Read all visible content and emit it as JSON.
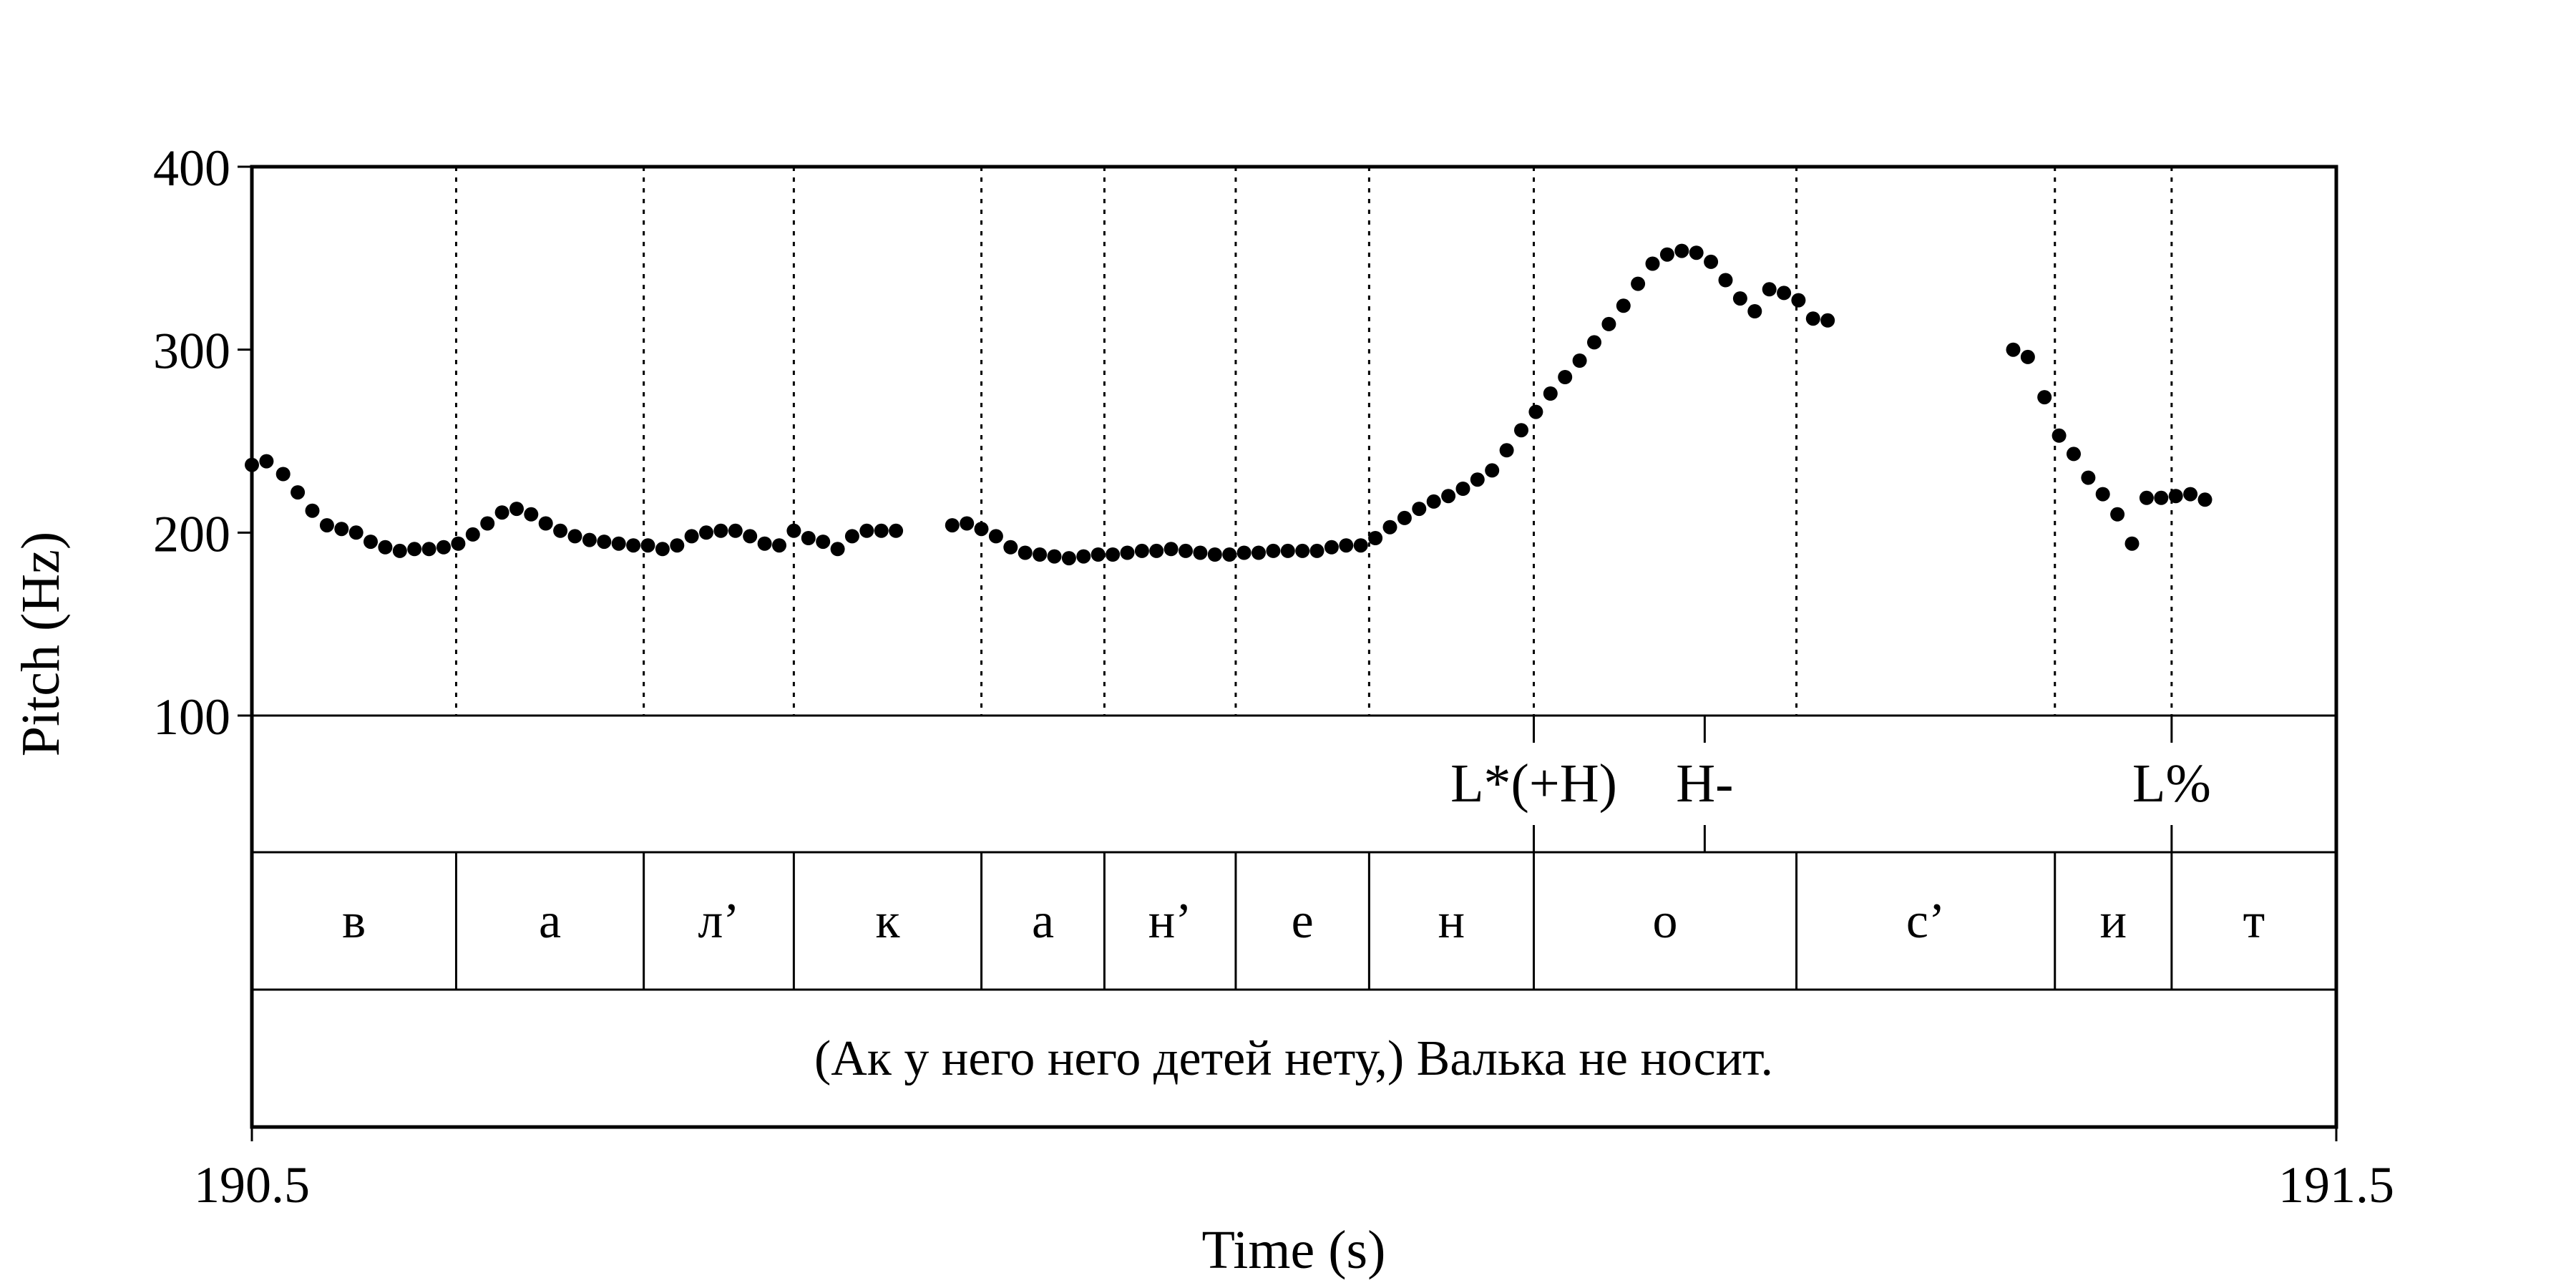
{
  "chart_data": {
    "type": "scatter",
    "xlabel": "Time (s)",
    "ylabel": "Pitch (Hz)",
    "xlim": [
      190.5,
      191.5
    ],
    "ylim": [
      100,
      400
    ],
    "xticks": [
      "190.5",
      "191.5"
    ],
    "yticks": [
      "100",
      "200",
      "300",
      "400"
    ],
    "grid": false,
    "legend": "none",
    "point_color": "#000000",
    "series": [
      {
        "points": [
          [
            190.5,
            237
          ],
          [
            190.507,
            239
          ],
          [
            190.515,
            232
          ],
          [
            190.522,
            222
          ],
          [
            190.529,
            212
          ],
          [
            190.536,
            204
          ],
          [
            190.543,
            202
          ],
          [
            190.55,
            200
          ],
          [
            190.557,
            195
          ],
          [
            190.564,
            192
          ],
          [
            190.571,
            190
          ],
          [
            190.578,
            191
          ],
          [
            190.585,
            191
          ],
          [
            190.592,
            192
          ],
          [
            190.599,
            194
          ],
          [
            190.606,
            199
          ],
          [
            190.613,
            205
          ],
          [
            190.62,
            211
          ],
          [
            190.627,
            213
          ],
          [
            190.634,
            210
          ],
          [
            190.641,
            205
          ],
          [
            190.648,
            201
          ],
          [
            190.655,
            198
          ],
          [
            190.662,
            196
          ],
          [
            190.669,
            195
          ],
          [
            190.676,
            194
          ],
          [
            190.683,
            193
          ],
          [
            190.69,
            193
          ],
          [
            190.697,
            191
          ],
          [
            190.704,
            193
          ],
          [
            190.711,
            198
          ],
          [
            190.718,
            200
          ],
          [
            190.725,
            201
          ],
          [
            190.732,
            201
          ],
          [
            190.739,
            198
          ],
          [
            190.746,
            194
          ],
          [
            190.753,
            193
          ],
          [
            190.76,
            201
          ],
          [
            190.767,
            197
          ],
          [
            190.774,
            195
          ],
          [
            190.781,
            191
          ],
          [
            190.788,
            198
          ],
          [
            190.795,
            201
          ],
          [
            190.802,
            201
          ],
          [
            190.809,
            201
          ],
          [
            190.836,
            204
          ],
          [
            190.843,
            205
          ],
          [
            190.85,
            202
          ],
          [
            190.857,
            198
          ],
          [
            190.864,
            192
          ],
          [
            190.871,
            189
          ],
          [
            190.878,
            188
          ],
          [
            190.885,
            187
          ],
          [
            190.892,
            186
          ],
          [
            190.899,
            187
          ],
          [
            190.906,
            188
          ],
          [
            190.913,
            188
          ],
          [
            190.92,
            189
          ],
          [
            190.927,
            190
          ],
          [
            190.934,
            190
          ],
          [
            190.941,
            191
          ],
          [
            190.948,
            190
          ],
          [
            190.955,
            189
          ],
          [
            190.962,
            188
          ],
          [
            190.969,
            188
          ],
          [
            190.976,
            189
          ],
          [
            190.983,
            189
          ],
          [
            190.99,
            190
          ],
          [
            190.997,
            190
          ],
          [
            191.004,
            190
          ],
          [
            191.011,
            190
          ],
          [
            191.018,
            192
          ],
          [
            191.025,
            193
          ],
          [
            191.032,
            193
          ],
          [
            191.039,
            197
          ],
          [
            191.046,
            203
          ],
          [
            191.053,
            208
          ],
          [
            191.06,
            213
          ],
          [
            191.067,
            217
          ],
          [
            191.074,
            220
          ],
          [
            191.081,
            224
          ],
          [
            191.088,
            229
          ],
          [
            191.095,
            234
          ],
          [
            191.102,
            245
          ],
          [
            191.109,
            256
          ],
          [
            191.116,
            266
          ],
          [
            191.123,
            276
          ],
          [
            191.13,
            285
          ],
          [
            191.137,
            294
          ],
          [
            191.144,
            304
          ],
          [
            191.151,
            314
          ],
          [
            191.158,
            324
          ],
          [
            191.165,
            336
          ],
          [
            191.172,
            347
          ],
          [
            191.179,
            352
          ],
          [
            191.186,
            354
          ],
          [
            191.193,
            353
          ],
          [
            191.2,
            348
          ],
          [
            191.207,
            338
          ],
          [
            191.214,
            328
          ],
          [
            191.221,
            321
          ],
          [
            191.228,
            333
          ],
          [
            191.235,
            331
          ],
          [
            191.242,
            327
          ],
          [
            191.249,
            317
          ],
          [
            191.256,
            316
          ],
          [
            191.345,
            300
          ],
          [
            191.352,
            296
          ],
          [
            191.36,
            274
          ],
          [
            191.367,
            253
          ],
          [
            191.374,
            243
          ],
          [
            191.381,
            230
          ],
          [
            191.388,
            221
          ],
          [
            191.395,
            210
          ],
          [
            191.402,
            194
          ],
          [
            191.409,
            219
          ],
          [
            191.416,
            219
          ],
          [
            191.423,
            220
          ],
          [
            191.43,
            221
          ],
          [
            191.437,
            218
          ]
        ]
      }
    ]
  },
  "tiers": {
    "tones": [
      {
        "label": "L*(+H)",
        "time": 191.115
      },
      {
        "label": "H-",
        "time": 191.197
      },
      {
        "label": "L%",
        "time": 191.421
      }
    ],
    "tone_marks": [
      191.115,
      191.197,
      191.421
    ],
    "segments": [
      {
        "label": "в",
        "start": 190.5,
        "end": 190.598
      },
      {
        "label": "а",
        "start": 190.598,
        "end": 190.688
      },
      {
        "label": "л’",
        "start": 190.688,
        "end": 190.76
      },
      {
        "label": "к",
        "start": 190.76,
        "end": 190.85
      },
      {
        "label": "а",
        "start": 190.85,
        "end": 190.909
      },
      {
        "label": "н’",
        "start": 190.909,
        "end": 190.972
      },
      {
        "label": "е",
        "start": 190.972,
        "end": 191.036
      },
      {
        "label": "н",
        "start": 191.036,
        "end": 191.115
      },
      {
        "label": "о",
        "start": 191.115,
        "end": 191.241
      },
      {
        "label": "с’",
        "start": 191.241,
        "end": 191.365
      },
      {
        "label": "и",
        "start": 191.365,
        "end": 191.421
      },
      {
        "label": "т",
        "start": 191.421,
        "end": 191.5
      }
    ],
    "sentence": "(Ак у него него детей нету,) Валька не носит."
  }
}
